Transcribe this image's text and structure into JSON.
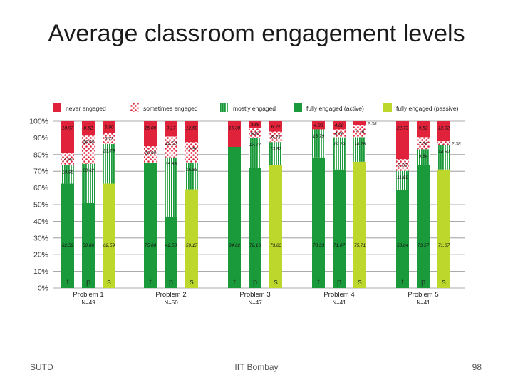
{
  "slide": {
    "title": "Average classroom engagement levels",
    "footer_left": "SUTD",
    "footer_center": "IIT Bombay",
    "page_number": "98"
  },
  "chart_data": {
    "type": "bar",
    "stacked": true,
    "title": "Average classroom engagement levels",
    "ylim": [
      0,
      100
    ],
    "yticks": [
      "0%",
      "10%",
      "20%",
      "30%",
      "40%",
      "50%",
      "60%",
      "70%",
      "80%",
      "90%",
      "100%"
    ],
    "legend": [
      {
        "key": "never",
        "label": "never engaged",
        "color": "#e0223a",
        "pattern": "solid"
      },
      {
        "key": "sometimes",
        "label": "sometimes engaged",
        "color": "#e0223a",
        "pattern": "dots"
      },
      {
        "key": "mostly",
        "label": "mostly engaged",
        "color": "#1a9a3a",
        "pattern": "stripes"
      },
      {
        "key": "active",
        "label": "fully engaged (active)",
        "color": "#1a9a3a",
        "pattern": "solid"
      },
      {
        "key": "passive",
        "label": "fully engaged (passive)",
        "color": "#bdd72c",
        "pattern": "solid"
      }
    ],
    "groups": [
      {
        "label": "Problem 1",
        "n": "N=49",
        "bars": [
          {
            "cat": "t",
            "kind": "active",
            "segments": [
              {
                "key": "active",
                "value": 62.59,
                "label": "62.59"
              },
              {
                "key": "mostly",
                "value": 10.95,
                "label": "10.95"
              },
              {
                "key": "sometimes",
                "value": 7.5,
                "label": "7.50"
              },
              {
                "key": "never",
                "value": 18.97,
                "label": "18.97"
              }
            ]
          },
          {
            "cat": "p",
            "kind": "active",
            "segments": [
              {
                "key": "active",
                "value": 50.86,
                "label": "50.86"
              },
              {
                "key": "mostly",
                "value": 23.62,
                "label": "23.62"
              },
              {
                "key": "sometimes",
                "value": 16.9,
                "label": "16.90"
              },
              {
                "key": "never",
                "value": 8.62,
                "label": "8.62"
              }
            ]
          },
          {
            "cat": "s",
            "kind": "passive",
            "segments": [
              {
                "key": "passive",
                "value": 62.59,
                "label": "62.59"
              },
              {
                "key": "mostly",
                "value": 23.79,
                "label": "23.79"
              },
              {
                "key": "sometimes",
                "value": 6.72,
                "label": "6.72"
              },
              {
                "key": "never",
                "value": 6.9,
                "label": "6.90"
              }
            ]
          }
        ]
      },
      {
        "label": "Problem 2",
        "n": "N=50",
        "bars": [
          {
            "cat": "t",
            "kind": "active",
            "segments": [
              {
                "key": "active",
                "value": 75.0,
                "label": "75.00"
              },
              {
                "key": "sometimes",
                "value": 10.0,
                "label": "10.00"
              },
              {
                "key": "never",
                "value": 15.0,
                "label": "15.00"
              }
            ]
          },
          {
            "cat": "p",
            "kind": "active",
            "segments": [
              {
                "key": "active",
                "value": 42.5,
                "label": "42.50"
              },
              {
                "key": "mostly",
                "value": 35.83,
                "label": "35.83"
              },
              {
                "key": "sometimes",
                "value": 12.5,
                "label": "12.50"
              },
              {
                "key": "never",
                "value": 9.17,
                "label": "9.17"
              }
            ]
          },
          {
            "cat": "s",
            "kind": "passive",
            "segments": [
              {
                "key": "passive",
                "value": 59.17,
                "label": "59.17"
              },
              {
                "key": "mostly",
                "value": 15.83,
                "label": "15.83"
              },
              {
                "key": "sometimes",
                "value": 12.5,
                "label": "12.50"
              },
              {
                "key": "never",
                "value": 12.5,
                "label": "12.50"
              }
            ]
          }
        ]
      },
      {
        "label": "Problem 3",
        "n": "N=47",
        "bars": [
          {
            "cat": "t",
            "kind": "active",
            "segments": [
              {
                "key": "active",
                "value": 84.62,
                "label": "84.62"
              },
              {
                "key": "never",
                "value": 15.38,
                "label": "15.38"
              }
            ]
          },
          {
            "cat": "p",
            "kind": "active",
            "segments": [
              {
                "key": "active",
                "value": 72.16,
                "label": "72.16"
              },
              {
                "key": "mostly",
                "value": 17.77,
                "label": "17.77"
              },
              {
                "key": "sometimes",
                "value": 6.23,
                "label": "6.23"
              },
              {
                "key": "never",
                "value": 3.85,
                "label": "3.85"
              }
            ]
          },
          {
            "cat": "s",
            "kind": "passive",
            "segments": [
              {
                "key": "passive",
                "value": 73.63,
                "label": "73.63"
              },
              {
                "key": "mostly",
                "value": 13.92,
                "label": "13.92"
              },
              {
                "key": "sometimes",
                "value": 6.23,
                "label": "6.23"
              },
              {
                "key": "never",
                "value": 6.22,
                "label": "6.22"
              }
            ]
          }
        ]
      },
      {
        "label": "Problem 4",
        "n": "N=41",
        "bars": [
          {
            "cat": "t",
            "kind": "active",
            "segments": [
              {
                "key": "active",
                "value": 78.33,
                "label": "78.33"
              },
              {
                "key": "mostly",
                "value": 16.79,
                "label": "16.79"
              },
              {
                "key": "never",
                "value": 4.88,
                "label": "4.88"
              }
            ]
          },
          {
            "cat": "p",
            "kind": "active",
            "segments": [
              {
                "key": "active",
                "value": 71.07,
                "label": "71.07"
              },
              {
                "key": "mostly",
                "value": 19.29,
                "label": "19.29"
              },
              {
                "key": "sometimes",
                "value": 4.76,
                "label": "4.76"
              },
              {
                "key": "never",
                "value": 4.88,
                "label": "4.88"
              }
            ]
          },
          {
            "cat": "s",
            "kind": "passive",
            "segments": [
              {
                "key": "passive",
                "value": 75.71,
                "label": "75.71"
              },
              {
                "key": "mostly",
                "value": 14.76,
                "label": "14.76"
              },
              {
                "key": "sometimes",
                "value": 7.14,
                "label": "7.14"
              },
              {
                "key": "never",
                "value": 2.38,
                "label": "2.38",
                "outside": true
              }
            ]
          }
        ]
      },
      {
        "label": "Problem 5",
        "n": "N=41",
        "bars": [
          {
            "cat": "t",
            "kind": "active",
            "segments": [
              {
                "key": "active",
                "value": 58.64,
                "label": "58.64"
              },
              {
                "key": "mostly",
                "value": 11.59,
                "label": "11.59"
              },
              {
                "key": "sometimes",
                "value": 7.05,
                "label": "7.05"
              },
              {
                "key": "never",
                "value": 22.73,
                "label": "22.73"
              }
            ]
          },
          {
            "cat": "p",
            "kind": "active",
            "segments": [
              {
                "key": "active",
                "value": 73.57,
                "label": "73.57"
              },
              {
                "key": "mostly",
                "value": 9.64,
                "label": "9.64"
              },
              {
                "key": "sometimes",
                "value": 7.26,
                "label": "7.26"
              },
              {
                "key": "never",
                "value": 9.52,
                "label": "9.52"
              }
            ]
          },
          {
            "cat": "s",
            "kind": "passive",
            "segments": [
              {
                "key": "passive",
                "value": 71.07,
                "label": "71.07"
              },
              {
                "key": "mostly",
                "value": 14.52,
                "label": "14.52"
              },
              {
                "key": "sometimes",
                "value": 2.38,
                "label": "2.38",
                "outside": true
              },
              {
                "key": "never",
                "value": 12.02,
                "label": "12.02"
              }
            ]
          }
        ]
      }
    ]
  }
}
